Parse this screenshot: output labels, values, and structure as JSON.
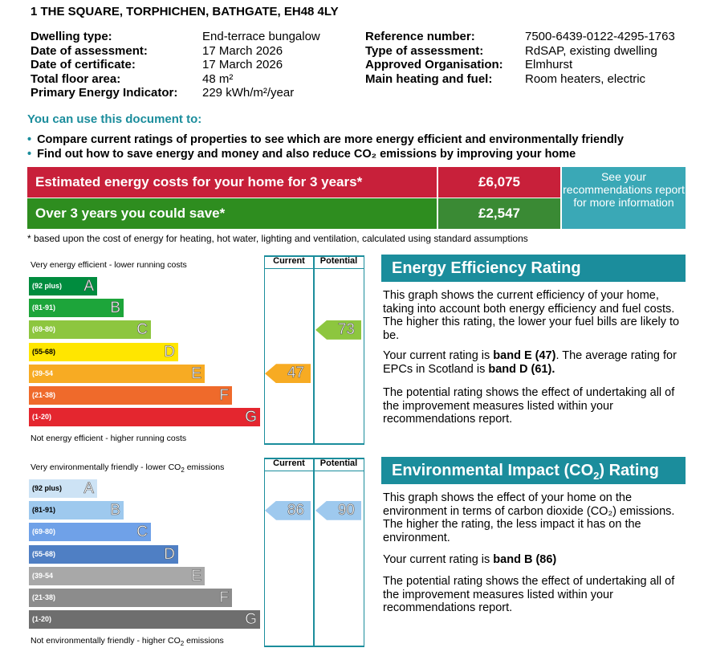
{
  "address": "1 THE SQUARE, TORPHICHEN, BATHGATE, EH48 4LY",
  "details_left": [
    {
      "label": "Dwelling type:",
      "value": "End-terrace bungalow"
    },
    {
      "label": "Date of assessment:",
      "value": "17 March 2026"
    },
    {
      "label": "Date of certificate:",
      "value": "17 March 2026"
    },
    {
      "label": "Total floor area:",
      "value": "48 m²"
    },
    {
      "label": "Primary Energy Indicator:",
      "value": "229 kWh/m²/year"
    }
  ],
  "details_right": [
    {
      "label": "Reference number:",
      "value": "7500-6439-0122-4295-1763"
    },
    {
      "label": "Type of assessment:",
      "value": "RdSAP, existing dwelling"
    },
    {
      "label": "Approved Organisation:",
      "value": "Elmhurst"
    },
    {
      "label": "Main heating and fuel:",
      "value": "Room heaters, electric"
    }
  ],
  "use_title": "You can use this document to:",
  "bullets": [
    "Compare current ratings of properties to see which are more energy efficient and environmentally friendly",
    "Find out how to save energy and money and also reduce CO₂ emissions by improving your home"
  ],
  "costs": {
    "estimated_label": "Estimated energy costs for your home for 3 years*",
    "estimated_value": "£6,075",
    "save_label": "Over 3 years you could save*",
    "save_value": "£2,547",
    "reco_text": "See your recommendations report for more information",
    "footnote": "* based upon the cost of energy for heating, hot water, lighting and ventilation, calculated using standard assumptions"
  },
  "colors": {
    "teal": "#1b8d9c",
    "estimated_bg": "#c8203a",
    "save_bg": "#2e8d1f",
    "save_value_bg": "#3a8a34",
    "estimated_value_bg": "#c8203a"
  },
  "energy": {
    "title": "Energy Efficiency Rating",
    "top_label": "Very energy efficient - lower running costs",
    "bottom_label": "Not energy efficient - higher running costs",
    "col_current": "Current",
    "col_potential": "Potential",
    "bands": [
      {
        "range": "(92 plus)",
        "letter": "A",
        "color": "#008c3e"
      },
      {
        "range": "(81-91)",
        "letter": "B",
        "color": "#1da53a"
      },
      {
        "range": "(69-80)",
        "letter": "C",
        "color": "#8dc63f"
      },
      {
        "range": "(55-68)",
        "letter": "D",
        "color": "#ffe600"
      },
      {
        "range": "(39-54",
        "letter": "E",
        "color": "#f7ab23"
      },
      {
        "range": "(21-38)",
        "letter": "F",
        "color": "#ef6a2b"
      },
      {
        "range": "(1-20)",
        "letter": "G",
        "color": "#e4262f"
      }
    ],
    "current": 47,
    "current_band": "E",
    "current_color": "#f7ab23",
    "potential": 73,
    "potential_band": "C",
    "potential_color": "#8dc63f",
    "para1": "This graph shows the current efficiency of your home, taking into account both energy efficiency and fuel costs. The higher this rating, the lower your fuel bills are likely to be.",
    "para2_prefix": "Your current rating is ",
    "para2_bold": "band E (47)",
    "para2_mid": ". The average rating for EPCs in Scotland is ",
    "para2_bold2": "band D (61).",
    "para3": "The potential rating shows the effect of undertaking all of the improvement measures listed within your recommendations report."
  },
  "environment": {
    "title_pre": "Environmental Impact (CO",
    "title_sub": "2",
    "title_post": ") Rating",
    "top_label_pre": "Very environmentally friendly - lower CO",
    "top_label_sub": "2",
    "top_label_post": " emissions",
    "bottom_label_pre": "Not environmentally friendly - higher CO",
    "bottom_label_sub": "2",
    "bottom_label_post": " emissions",
    "col_current": "Current",
    "col_potential": "Potential",
    "bands": [
      {
        "range": "(92 plus)",
        "letter": "A",
        "color": "#cde3f5",
        "dark": true
      },
      {
        "range": "(81-91)",
        "letter": "B",
        "color": "#9ec9ee",
        "dark": true
      },
      {
        "range": "(69-80)",
        "letter": "C",
        "color": "#6fa1e8",
        "dark": false
      },
      {
        "range": "(55-68)",
        "letter": "D",
        "color": "#4f7fc4",
        "dark": false
      },
      {
        "range": "(39-54",
        "letter": "E",
        "color": "#a8a8a8",
        "dark": false
      },
      {
        "range": "(21-38)",
        "letter": "F",
        "color": "#8c8c8c",
        "dark": false
      },
      {
        "range": "(1-20)",
        "letter": "G",
        "color": "#6e6e6e",
        "dark": false
      }
    ],
    "current": 86,
    "current_band": "B",
    "current_color": "#9ec9ee",
    "potential": 90,
    "potential_band": "B",
    "potential_color": "#9ec9ee",
    "para1": "This graph shows the effect of your home on the environment in terms of carbon dioxide (CO₂) emissions. The higher the rating, the less impact it has on the environment.",
    "para2_prefix": "Your current rating is ",
    "para2_bold": "band B (86)",
    "para3": "The potential rating shows the effect of undertaking all of the improvement measures listed within your recommendations report."
  }
}
